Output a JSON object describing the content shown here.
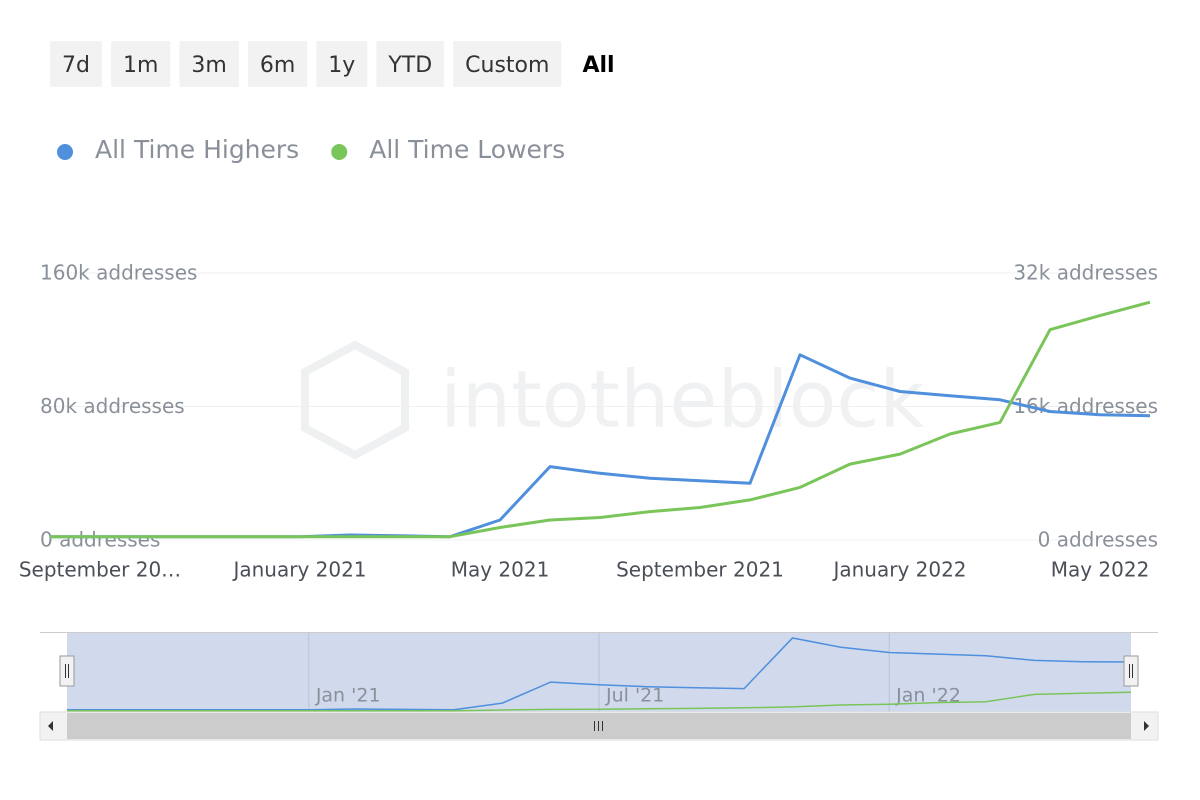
{
  "range_buttons": [
    "7d",
    "1m",
    "3m",
    "6m",
    "1y",
    "YTD",
    "Custom",
    "All"
  ],
  "chart_data": {
    "type": "line",
    "watermark": "intotheblock",
    "x": [
      "2020-08",
      "2020-09",
      "2020-10",
      "2020-11",
      "2020-12",
      "2021-01",
      "2021-02",
      "2021-03",
      "2021-04",
      "2021-05",
      "2021-06",
      "2021-07",
      "2021-08",
      "2021-09",
      "2021-10",
      "2021-11",
      "2021-12",
      "2022-01",
      "2022-02",
      "2022-03",
      "2022-04",
      "2022-05",
      "2022-06"
    ],
    "xlim": [
      "2020-08",
      "2022-06"
    ],
    "xticks": [
      {
        "value": "2020-09",
        "label": "September 20…"
      },
      {
        "value": "2021-01",
        "label": "January 2021"
      },
      {
        "value": "2021-05",
        "label": "May 2021"
      },
      {
        "value": "2021-09",
        "label": "September 2021"
      },
      {
        "value": "2022-01",
        "label": "January 2022"
      },
      {
        "value": "2022-05",
        "label": "May 2022"
      }
    ],
    "ylim": [
      0,
      160000
    ],
    "yticks": [
      {
        "value": 0,
        "label": "0 addresses"
      },
      {
        "value": 80000,
        "label": "80k addresses"
      },
      {
        "value": 160000,
        "label": "160k addresses"
      }
    ],
    "y2lim": [
      0,
      32000
    ],
    "y2ticks": [
      {
        "value": 0,
        "label": "0 addresses"
      },
      {
        "value": 16000,
        "label": "16k addresses"
      },
      {
        "value": 32000,
        "label": "32k addresses"
      }
    ],
    "grid": true,
    "series": [
      {
        "name": "All Time Highers",
        "color": "#4f8fdc",
        "values": [
          2000,
          2000,
          2000,
          2000,
          2000,
          2000,
          3000,
          2500,
          2000,
          12000,
          44000,
          40000,
          37000,
          35500,
          34000,
          111000,
          97000,
          89000,
          86500,
          84000,
          77000,
          75000,
          74500
        ]
      },
      {
        "name": "All Time Lowers",
        "color": "#7ac55a",
        "axis": "y2",
        "values": [
          400,
          400,
          400,
          400,
          400,
          400,
          400,
          400,
          400,
          1500,
          2400,
          2700,
          3400,
          3900,
          4800,
          6300,
          9100,
          10300,
          12700,
          14100,
          25200,
          26900,
          28500
        ]
      }
    ],
    "navigator_xticks": [
      {
        "value": "2021-01",
        "label": "Jan '21"
      },
      {
        "value": "2021-07",
        "label": "Jul '21"
      },
      {
        "value": "2022-01",
        "label": "Jan '22"
      }
    ]
  }
}
